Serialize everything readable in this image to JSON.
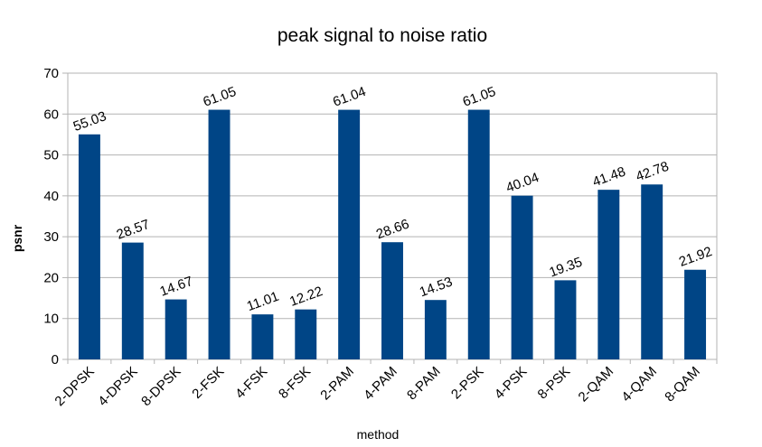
{
  "chart_data": {
    "type": "bar",
    "title": "peak signal to noise ratio",
    "xlabel": "method",
    "ylabel": "psnr",
    "categories": [
      "2-DPSK",
      "4-DPSK",
      "8-DPSK",
      "2-FSK",
      "4-FSK",
      "8-FSK",
      "2-PAM",
      "4-PAM",
      "8-PAM",
      "2-PSK",
      "4-PSK",
      "8-PSK",
      "2-QAM",
      "4-QAM",
      "8-QAM"
    ],
    "values": [
      55.03,
      28.57,
      14.67,
      61.05,
      11.01,
      12.22,
      61.04,
      28.66,
      14.53,
      61.05,
      40.04,
      19.35,
      41.48,
      42.78,
      21.92
    ],
    "data_labels": [
      "55.03",
      "28.57",
      "14.67",
      "61.05",
      "11.01",
      "12.22",
      "61.04",
      "28.66",
      "14.53",
      "61.05",
      "40.04",
      "19.35",
      "41.48",
      "42.78",
      "21.92"
    ],
    "ylim": [
      0,
      70
    ],
    "yticks": [
      0,
      10,
      20,
      30,
      40,
      50,
      60,
      70
    ],
    "grid": true,
    "legend": "none",
    "bar_color": "#004586",
    "grid_color": "#b3b3b3"
  }
}
